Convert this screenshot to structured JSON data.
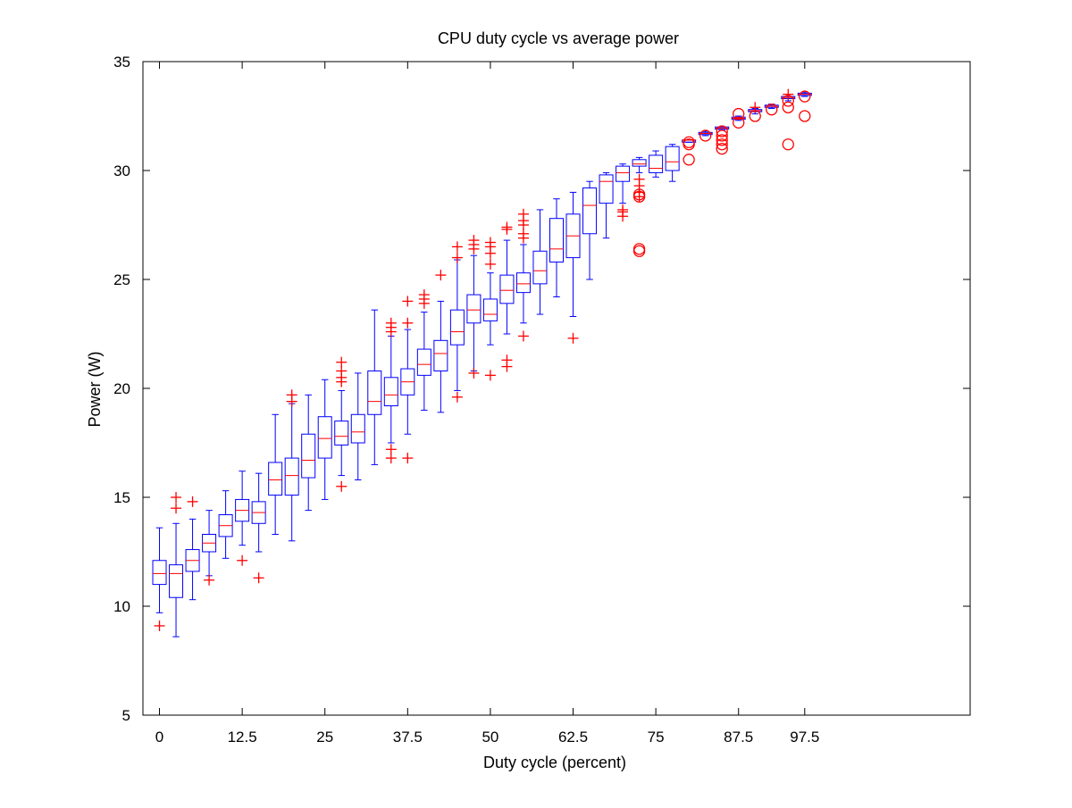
{
  "chart_data": {
    "type": "box",
    "title": "CPU duty cycle vs average power",
    "xlabel": "Duty cycle (percent)",
    "ylabel": "Power (W)",
    "xlim": [
      -2.5,
      122.5
    ],
    "ylim": [
      5,
      35
    ],
    "x_ticks": [
      0,
      12.5,
      25,
      37.5,
      50,
      62.5,
      75,
      87.5,
      97.5
    ],
    "x_tick_labels": [
      "0",
      "12.5",
      "25",
      "37.5",
      "50",
      "62.5",
      "75",
      "87.5",
      "97.5"
    ],
    "y_ticks": [
      5,
      10,
      15,
      20,
      25,
      30,
      35
    ],
    "y_tick_labels": [
      "5",
      "10",
      "15",
      "20",
      "25",
      "30",
      "35"
    ],
    "grid": false,
    "box_color": "#0000ff",
    "median_color": "#ff0000",
    "outlier_color": "#ff0000",
    "boxes": [
      {
        "x": 0,
        "whisker_low": 9.7,
        "q1": 11.0,
        "median": 11.5,
        "q3": 12.1,
        "whisker_high": 13.6
      },
      {
        "x": 2.5,
        "whisker_low": 8.6,
        "q1": 10.4,
        "median": 11.5,
        "q3": 11.9,
        "whisker_high": 13.8
      },
      {
        "x": 5,
        "whisker_low": 10.3,
        "q1": 11.6,
        "median": 12.1,
        "q3": 12.6,
        "whisker_high": 14.0
      },
      {
        "x": 7.5,
        "whisker_low": 11.4,
        "q1": 12.5,
        "median": 12.9,
        "q3": 13.3,
        "whisker_high": 14.4
      },
      {
        "x": 10,
        "whisker_low": 12.2,
        "q1": 13.2,
        "median": 13.7,
        "q3": 14.2,
        "whisker_high": 15.3
      },
      {
        "x": 12.5,
        "whisker_low": 12.8,
        "q1": 13.9,
        "median": 14.4,
        "q3": 14.9,
        "whisker_high": 16.2
      },
      {
        "x": 15,
        "whisker_low": 12.5,
        "q1": 13.8,
        "median": 14.3,
        "q3": 14.8,
        "whisker_high": 16.1
      },
      {
        "x": 17.5,
        "whisker_low": 13.3,
        "q1": 15.1,
        "median": 15.8,
        "q3": 16.6,
        "whisker_high": 18.8
      },
      {
        "x": 20,
        "whisker_low": 13.0,
        "q1": 15.1,
        "median": 16.0,
        "q3": 16.8,
        "whisker_high": 19.3
      },
      {
        "x": 22.5,
        "whisker_low": 14.4,
        "q1": 15.9,
        "median": 16.7,
        "q3": 17.9,
        "whisker_high": 19.7
      },
      {
        "x": 25,
        "whisker_low": 14.9,
        "q1": 16.8,
        "median": 17.7,
        "q3": 18.7,
        "whisker_high": 20.4
      },
      {
        "x": 27.5,
        "whisker_low": 16.0,
        "q1": 17.4,
        "median": 17.8,
        "q3": 18.5,
        "whisker_high": 19.9
      },
      {
        "x": 30,
        "whisker_low": 15.8,
        "q1": 17.5,
        "median": 18.0,
        "q3": 18.8,
        "whisker_high": 20.7
      },
      {
        "x": 32.5,
        "whisker_low": 16.5,
        "q1": 18.8,
        "median": 19.4,
        "q3": 20.8,
        "whisker_high": 23.6
      },
      {
        "x": 35,
        "whisker_low": 17.5,
        "q1": 19.2,
        "median": 19.7,
        "q3": 20.5,
        "whisker_high": 22.4
      },
      {
        "x": 37.5,
        "whisker_low": 17.9,
        "q1": 19.7,
        "median": 20.3,
        "q3": 20.9,
        "whisker_high": 22.7
      },
      {
        "x": 40,
        "whisker_low": 19.0,
        "q1": 20.6,
        "median": 21.1,
        "q3": 21.8,
        "whisker_high": 23.5
      },
      {
        "x": 42.5,
        "whisker_low": 18.9,
        "q1": 20.8,
        "median": 21.6,
        "q3": 22.2,
        "whisker_high": 24.0
      },
      {
        "x": 45,
        "whisker_low": 19.9,
        "q1": 22.0,
        "median": 22.6,
        "q3": 23.6,
        "whisker_high": 25.9
      },
      {
        "x": 47.5,
        "whisker_low": 20.8,
        "q1": 23.0,
        "median": 23.6,
        "q3": 24.3,
        "whisker_high": 26.1
      },
      {
        "x": 50,
        "whisker_low": 22.0,
        "q1": 23.1,
        "median": 23.4,
        "q3": 24.1,
        "whisker_high": 25.3
      },
      {
        "x": 52.5,
        "whisker_low": 22.5,
        "q1": 23.9,
        "median": 24.5,
        "q3": 25.2,
        "whisker_high": 26.8
      },
      {
        "x": 55,
        "whisker_low": 23.0,
        "q1": 24.4,
        "median": 24.8,
        "q3": 25.3,
        "whisker_high": 26.6
      },
      {
        "x": 57.5,
        "whisker_low": 23.4,
        "q1": 24.8,
        "median": 25.4,
        "q3": 26.3,
        "whisker_high": 28.2
      },
      {
        "x": 60,
        "whisker_low": 24.2,
        "q1": 25.8,
        "median": 26.4,
        "q3": 27.8,
        "whisker_high": 28.7
      },
      {
        "x": 62.5,
        "whisker_low": 23.3,
        "q1": 26.0,
        "median": 27.0,
        "q3": 28.0,
        "whisker_high": 29.0
      },
      {
        "x": 65,
        "whisker_low": 25.0,
        "q1": 27.1,
        "median": 28.4,
        "q3": 29.2,
        "whisker_high": 29.5
      },
      {
        "x": 67.5,
        "whisker_low": 26.9,
        "q1": 28.5,
        "median": 29.5,
        "q3": 29.8,
        "whisker_high": 29.9
      },
      {
        "x": 70,
        "whisker_low": 28.5,
        "q1": 29.5,
        "median": 29.9,
        "q3": 30.2,
        "whisker_high": 30.3
      },
      {
        "x": 72.5,
        "whisker_low": 29.9,
        "q1": 30.2,
        "median": 30.3,
        "q3": 30.5,
        "whisker_high": 30.6
      },
      {
        "x": 75,
        "whisker_low": 29.7,
        "q1": 29.9,
        "median": 30.1,
        "q3": 30.7,
        "whisker_high": 30.9
      },
      {
        "x": 77.5,
        "whisker_low": 29.5,
        "q1": 30.0,
        "median": 30.4,
        "q3": 31.1,
        "whisker_high": 31.2
      },
      {
        "x": 80,
        "whisker_low": 31.3,
        "q1": 31.3,
        "median": 31.4,
        "q3": 31.4,
        "whisker_high": 31.4
      },
      {
        "x": 82.5,
        "whisker_low": 31.6,
        "q1": 31.65,
        "median": 31.7,
        "q3": 31.75,
        "whisker_high": 31.8
      },
      {
        "x": 85,
        "whisker_low": 31.85,
        "q1": 31.9,
        "median": 31.95,
        "q3": 32.0,
        "whisker_high": 32.0
      },
      {
        "x": 87.5,
        "whisker_low": 32.3,
        "q1": 32.35,
        "median": 32.4,
        "q3": 32.45,
        "whisker_high": 32.5
      },
      {
        "x": 90,
        "whisker_low": 32.6,
        "q1": 32.7,
        "median": 32.75,
        "q3": 32.8,
        "whisker_high": 32.85
      },
      {
        "x": 92.5,
        "whisker_low": 32.85,
        "q1": 32.9,
        "median": 32.95,
        "q3": 33.0,
        "whisker_high": 33.05
      },
      {
        "x": 95,
        "whisker_low": 33.2,
        "q1": 33.3,
        "median": 33.35,
        "q3": 33.4,
        "whisker_high": 33.5
      },
      {
        "x": 97.5,
        "whisker_low": 33.4,
        "q1": 33.45,
        "median": 33.5,
        "q3": 33.55,
        "whisker_high": 33.6
      }
    ],
    "outliers": [
      {
        "x": 0,
        "y": 9.1
      },
      {
        "x": 2.5,
        "y": 15.0
      },
      {
        "x": 2.5,
        "y": 14.5
      },
      {
        "x": 5,
        "y": 14.8
      },
      {
        "x": 7.5,
        "y": 11.2
      },
      {
        "x": 12.5,
        "y": 12.1
      },
      {
        "x": 15,
        "y": 11.3
      },
      {
        "x": 20,
        "y": 19.7
      },
      {
        "x": 20,
        "y": 19.4
      },
      {
        "x": 27.5,
        "y": 15.5
      },
      {
        "x": 27.5,
        "y": 21.2
      },
      {
        "x": 27.5,
        "y": 20.8
      },
      {
        "x": 27.5,
        "y": 20.5
      },
      {
        "x": 27.5,
        "y": 20.3
      },
      {
        "x": 35,
        "y": 17.2
      },
      {
        "x": 35,
        "y": 16.8
      },
      {
        "x": 35,
        "y": 23.0
      },
      {
        "x": 35,
        "y": 22.8
      },
      {
        "x": 35,
        "y": 22.6
      },
      {
        "x": 37.5,
        "y": 16.8
      },
      {
        "x": 37.5,
        "y": 24.0
      },
      {
        "x": 37.5,
        "y": 23.0
      },
      {
        "x": 40,
        "y": 24.3
      },
      {
        "x": 40,
        "y": 24.1
      },
      {
        "x": 40,
        "y": 23.9
      },
      {
        "x": 42.5,
        "y": 25.2
      },
      {
        "x": 45,
        "y": 19.6
      },
      {
        "x": 45,
        "y": 26.5
      },
      {
        "x": 45,
        "y": 26.0
      },
      {
        "x": 47.5,
        "y": 20.7
      },
      {
        "x": 47.5,
        "y": 26.8
      },
      {
        "x": 47.5,
        "y": 26.6
      },
      {
        "x": 47.5,
        "y": 26.4
      },
      {
        "x": 50,
        "y": 20.6
      },
      {
        "x": 50,
        "y": 26.7
      },
      {
        "x": 50,
        "y": 26.5
      },
      {
        "x": 50,
        "y": 26.2
      },
      {
        "x": 50,
        "y": 25.7
      },
      {
        "x": 52.5,
        "y": 21.3
      },
      {
        "x": 52.5,
        "y": 21.0
      },
      {
        "x": 52.5,
        "y": 27.4
      },
      {
        "x": 52.5,
        "y": 27.3
      },
      {
        "x": 55,
        "y": 22.4
      },
      {
        "x": 55,
        "y": 28.0
      },
      {
        "x": 55,
        "y": 27.7
      },
      {
        "x": 55,
        "y": 27.5
      },
      {
        "x": 55,
        "y": 27.1
      },
      {
        "x": 55,
        "y": 26.9
      },
      {
        "x": 62.5,
        "y": 22.3
      },
      {
        "x": 70,
        "y": 28.2
      },
      {
        "x": 70,
        "y": 28.1
      },
      {
        "x": 70,
        "y": 27.9
      },
      {
        "x": 72.5,
        "y": 29.6
      },
      {
        "x": 72.5,
        "y": 29.3
      },
      {
        "x": 72.5,
        "y": 29.0
      },
      {
        "x": 72.5,
        "y": 28.8
      },
      {
        "x": 72.5,
        "y": 28.9,
        "marker": "circle"
      },
      {
        "x": 72.5,
        "y": 28.8,
        "marker": "circle"
      },
      {
        "x": 72.5,
        "y": 26.4,
        "marker": "circle"
      },
      {
        "x": 72.5,
        "y": 26.3,
        "marker": "circle"
      },
      {
        "x": 80,
        "y": 31.3,
        "marker": "circle"
      },
      {
        "x": 80,
        "y": 31.2,
        "marker": "circle"
      },
      {
        "x": 80,
        "y": 30.5,
        "marker": "circle"
      },
      {
        "x": 82.5,
        "y": 31.6,
        "marker": "circle"
      },
      {
        "x": 85,
        "y": 31.8,
        "marker": "circle"
      },
      {
        "x": 85,
        "y": 31.6,
        "marker": "circle"
      },
      {
        "x": 85,
        "y": 31.4,
        "marker": "circle"
      },
      {
        "x": 85,
        "y": 31.2,
        "marker": "circle"
      },
      {
        "x": 85,
        "y": 31.0,
        "marker": "circle"
      },
      {
        "x": 87.5,
        "y": 32.6,
        "marker": "circle"
      },
      {
        "x": 87.5,
        "y": 32.2,
        "marker": "circle"
      },
      {
        "x": 90,
        "y": 32.9
      },
      {
        "x": 90,
        "y": 32.5,
        "marker": "circle"
      },
      {
        "x": 92.5,
        "y": 32.8,
        "marker": "circle"
      },
      {
        "x": 95,
        "y": 33.5
      },
      {
        "x": 95,
        "y": 33.2,
        "marker": "circle"
      },
      {
        "x": 95,
        "y": 32.9,
        "marker": "circle"
      },
      {
        "x": 95,
        "y": 31.2,
        "marker": "circle"
      },
      {
        "x": 97.5,
        "y": 33.4,
        "marker": "circle"
      },
      {
        "x": 97.5,
        "y": 32.5,
        "marker": "circle"
      }
    ]
  }
}
